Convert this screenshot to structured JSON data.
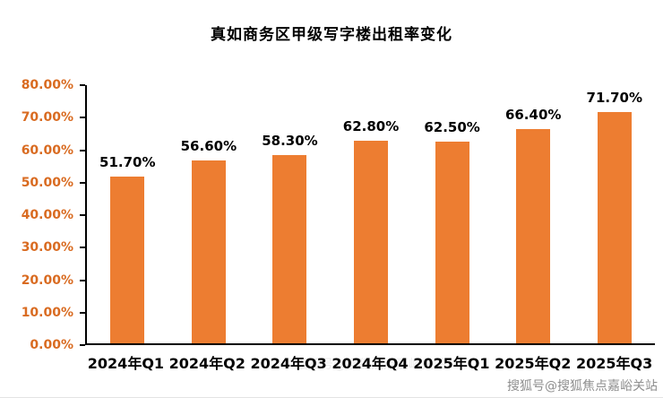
{
  "chart_data": {
    "type": "bar",
    "title": "真如商务区甲级写字楼出租率变化",
    "categories": [
      "2024年Q1",
      "2024年Q2",
      "2024年Q3",
      "2024年Q4",
      "2025年Q1",
      "2025年Q2",
      "2025年Q3"
    ],
    "values": [
      51.7,
      56.6,
      58.3,
      62.8,
      62.5,
      66.4,
      71.7
    ],
    "value_labels": [
      "51.70%",
      "56.60%",
      "58.30%",
      "62.80%",
      "62.50%",
      "66.40%",
      "71.70%"
    ],
    "xlabel": "",
    "ylabel": "",
    "ylim": [
      0,
      80
    ],
    "y_ticks": [
      {
        "label": "0.00%",
        "value": 0
      },
      {
        "label": "10.00%",
        "value": 10
      },
      {
        "label": "20.00%",
        "value": 20
      },
      {
        "label": "30.00%",
        "value": 30
      },
      {
        "label": "40.00%",
        "value": 40
      },
      {
        "label": "50.00%",
        "value": 50
      },
      {
        "label": "60.00%",
        "value": 60
      },
      {
        "label": "70.00%",
        "value": 70
      },
      {
        "label": "80.00%",
        "value": 80
      }
    ],
    "grid": false,
    "legend": false,
    "bar_color": "#ED7D31",
    "ytick_color": "#D96B21",
    "axis_color": "#000000"
  },
  "watermark": {
    "text": "搜狐号@搜狐焦点嘉峪关站"
  }
}
